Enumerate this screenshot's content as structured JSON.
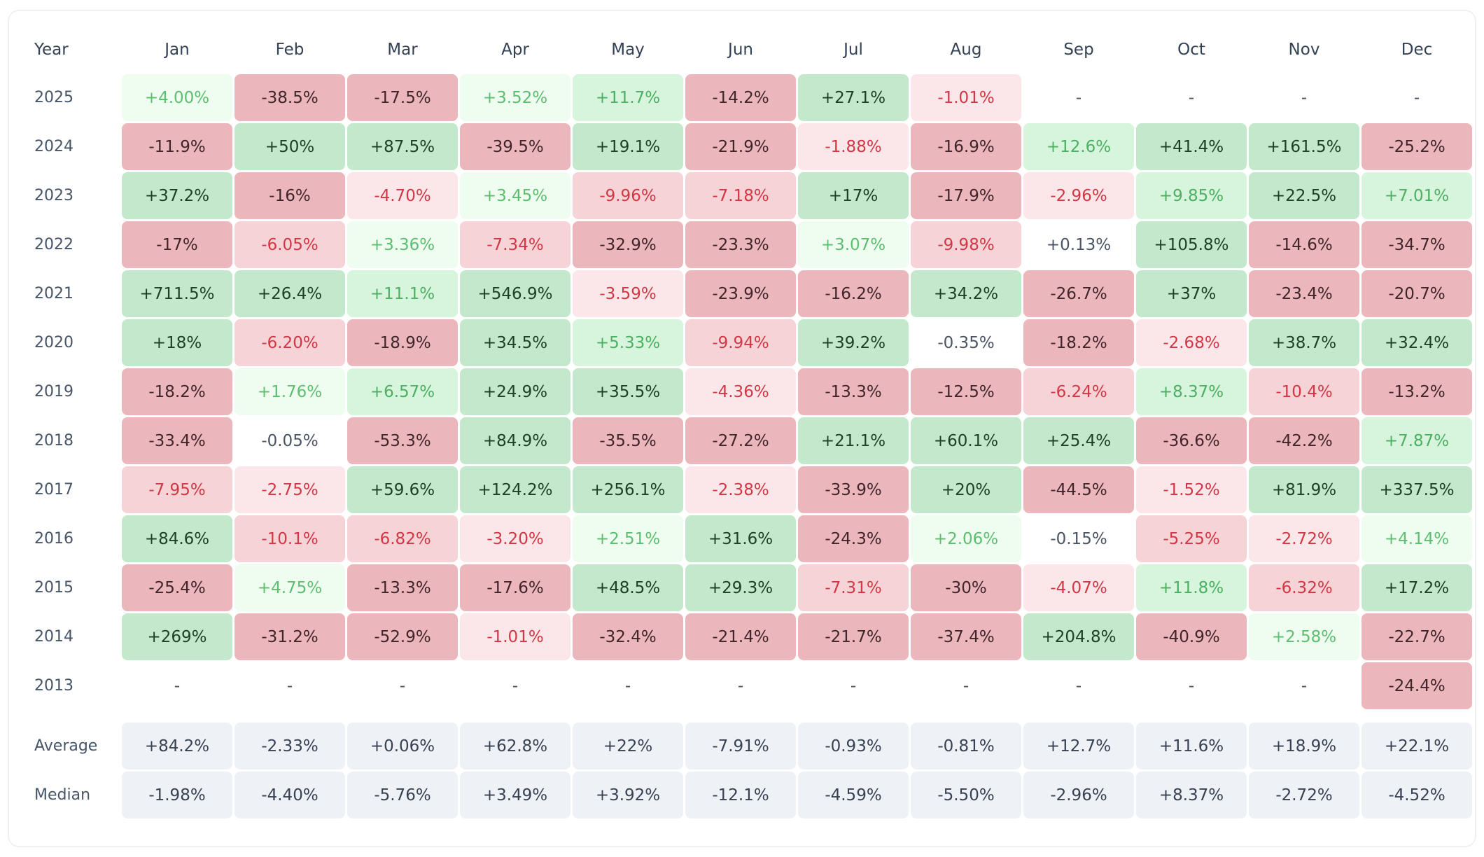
{
  "headers": {
    "year": "Year",
    "months": [
      "Jan",
      "Feb",
      "Mar",
      "Apr",
      "May",
      "Jun",
      "Jul",
      "Aug",
      "Sep",
      "Oct",
      "Nov",
      "Dec"
    ]
  },
  "rows": [
    {
      "year": "2025",
      "values": [
        "+4.00%",
        "-38.5%",
        "-17.5%",
        "+3.52%",
        "+11.7%",
        "-14.2%",
        "+27.1%",
        "-1.01%",
        "-",
        "-",
        "-",
        "-"
      ]
    },
    {
      "year": "2024",
      "values": [
        "-11.9%",
        "+50%",
        "+87.5%",
        "-39.5%",
        "+19.1%",
        "-21.9%",
        "-1.88%",
        "-16.9%",
        "+12.6%",
        "+41.4%",
        "+161.5%",
        "-25.2%"
      ]
    },
    {
      "year": "2023",
      "values": [
        "+37.2%",
        "-16%",
        "-4.70%",
        "+3.45%",
        "-9.96%",
        "-7.18%",
        "+17%",
        "-17.9%",
        "-2.96%",
        "+9.85%",
        "+22.5%",
        "+7.01%"
      ]
    },
    {
      "year": "2022",
      "values": [
        "-17%",
        "-6.05%",
        "+3.36%",
        "-7.34%",
        "-32.9%",
        "-23.3%",
        "+3.07%",
        "-9.98%",
        "+0.13%",
        "+105.8%",
        "-14.6%",
        "-34.7%"
      ]
    },
    {
      "year": "2021",
      "values": [
        "+711.5%",
        "+26.4%",
        "+11.1%",
        "+546.9%",
        "-3.59%",
        "-23.9%",
        "-16.2%",
        "+34.2%",
        "-26.7%",
        "+37%",
        "-23.4%",
        "-20.7%"
      ]
    },
    {
      "year": "2020",
      "values": [
        "+18%",
        "-6.20%",
        "-18.9%",
        "+34.5%",
        "+5.33%",
        "-9.94%",
        "+39.2%",
        "-0.35%",
        "-18.2%",
        "-2.68%",
        "+38.7%",
        "+32.4%"
      ]
    },
    {
      "year": "2019",
      "values": [
        "-18.2%",
        "+1.76%",
        "+6.57%",
        "+24.9%",
        "+35.5%",
        "-4.36%",
        "-13.3%",
        "-12.5%",
        "-6.24%",
        "+8.37%",
        "-10.4%",
        "-13.2%"
      ]
    },
    {
      "year": "2018",
      "values": [
        "-33.4%",
        "-0.05%",
        "-53.3%",
        "+84.9%",
        "-35.5%",
        "-27.2%",
        "+21.1%",
        "+60.1%",
        "+25.4%",
        "-36.6%",
        "-42.2%",
        "+7.87%"
      ]
    },
    {
      "year": "2017",
      "values": [
        "-7.95%",
        "-2.75%",
        "+59.6%",
        "+124.2%",
        "+256.1%",
        "-2.38%",
        "-33.9%",
        "+20%",
        "-44.5%",
        "-1.52%",
        "+81.9%",
        "+337.5%"
      ]
    },
    {
      "year": "2016",
      "values": [
        "+84.6%",
        "-10.1%",
        "-6.82%",
        "-3.20%",
        "+2.51%",
        "+31.6%",
        "-24.3%",
        "+2.06%",
        "-0.15%",
        "-5.25%",
        "-2.72%",
        "+4.14%"
      ]
    },
    {
      "year": "2015",
      "values": [
        "-25.4%",
        "+4.75%",
        "-13.3%",
        "-17.6%",
        "+48.5%",
        "+29.3%",
        "-7.31%",
        "-30%",
        "-4.07%",
        "+11.8%",
        "-6.32%",
        "+17.2%"
      ]
    },
    {
      "year": "2014",
      "values": [
        "+269%",
        "-31.2%",
        "-52.9%",
        "-1.01%",
        "-32.4%",
        "-21.4%",
        "-21.7%",
        "-37.4%",
        "+204.8%",
        "-40.9%",
        "+2.58%",
        "-22.7%"
      ]
    },
    {
      "year": "2013",
      "values": [
        "-",
        "-",
        "-",
        "-",
        "-",
        "-",
        "-",
        "-",
        "-",
        "-",
        "-",
        "-24.4%"
      ]
    }
  ],
  "stats": [
    {
      "label": "Average",
      "values": [
        "+84.2%",
        "-2.33%",
        "+0.06%",
        "+62.8%",
        "+22%",
        "-7.91%",
        "-0.93%",
        "-0.81%",
        "+12.7%",
        "+11.6%",
        "+18.9%",
        "+22.1%"
      ]
    },
    {
      "label": "Median",
      "values": [
        "-1.98%",
        "-4.40%",
        "-5.76%",
        "+3.49%",
        "+3.92%",
        "-12.1%",
        "-4.59%",
        "-5.50%",
        "-2.96%",
        "+8.37%",
        "-2.72%",
        "-4.52%"
      ]
    }
  ],
  "colors": {
    "strong_positive_bg": "#c3e8cb",
    "medium_positive_bg": "#d6f5dc",
    "weak_positive_bg": "#effcf0",
    "strong_negative_bg": "#ebb7bc",
    "medium_negative_bg": "#f5d3d7",
    "weak_negative_bg": "#fbe7e9",
    "stats_bg": "#eef2f7",
    "positive_text": "#4caf62",
    "negative_text": "#d23744"
  }
}
